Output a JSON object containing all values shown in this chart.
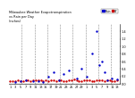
{
  "title": "Milwaukee Weather Evapotranspiration\nvs Rain per Day\n(Inches)",
  "legend_labels": [
    "Rain",
    "ET"
  ],
  "legend_colors": [
    "#0000cc",
    "#cc0000"
  ],
  "background_color": "#ffffff",
  "xlim": [
    0.5,
    44
  ],
  "ylim": [
    0,
    1.6
  ],
  "grid_color": "#888888",
  "grid_linestyle": "--",
  "grid_positions": [
    5.5,
    10.5,
    15.5,
    20.5,
    25.5,
    30.5,
    35.5,
    40.5
  ],
  "xtick_positions": [
    1,
    3,
    5,
    7,
    9,
    11,
    13,
    15,
    17,
    19,
    21,
    23,
    25,
    27,
    29,
    31,
    33,
    35,
    37,
    39,
    41,
    43
  ],
  "x_labels": [
    "1",
    "3",
    "5",
    "7",
    "9",
    "11",
    "13",
    "15",
    "17",
    "19",
    "21",
    "23",
    "25",
    "27",
    "29",
    "1",
    "3",
    "5",
    "7",
    "9",
    "11",
    "13"
  ],
  "ytick_positions": [
    0.0,
    0.2,
    0.4,
    0.6,
    0.8,
    1.0,
    1.2,
    1.4
  ],
  "et_x": [
    1,
    2,
    3,
    4,
    5,
    6,
    7,
    8,
    9,
    10,
    11,
    12,
    13,
    14,
    15,
    16,
    17,
    18,
    19,
    20,
    21,
    22,
    23,
    24,
    25,
    26,
    27,
    28,
    29,
    30,
    31,
    32,
    33,
    34,
    35,
    36,
    37,
    38,
    39,
    40,
    41,
    42,
    43
  ],
  "et_y": [
    0.07,
    0.08,
    0.06,
    0.09,
    0.08,
    0.07,
    0.09,
    0.1,
    0.08,
    0.09,
    0.1,
    0.09,
    0.1,
    0.08,
    0.09,
    0.07,
    0.1,
    0.09,
    0.08,
    0.1,
    0.09,
    0.08,
    0.07,
    0.09,
    0.1,
    0.11,
    0.09,
    0.08,
    0.07,
    0.09,
    0.1,
    0.09,
    0.08,
    0.07,
    0.09,
    0.1,
    0.09,
    0.08,
    0.09,
    0.1,
    0.08,
    0.07,
    0.09
  ],
  "rain_x": [
    3,
    5,
    7,
    10,
    12,
    14,
    16,
    18,
    20,
    22,
    24,
    27,
    29,
    31,
    33,
    35,
    36,
    37,
    38,
    39,
    41,
    43
  ],
  "rain_y": [
    0.05,
    0.08,
    0.1,
    0.06,
    0.08,
    0.05,
    0.2,
    0.3,
    0.1,
    0.25,
    0.35,
    0.15,
    0.4,
    0.2,
    0.8,
    1.4,
    0.5,
    0.6,
    0.3,
    0.1,
    0.15,
    0.12
  ],
  "dot_size_et": 3,
  "dot_size_rain": 3
}
